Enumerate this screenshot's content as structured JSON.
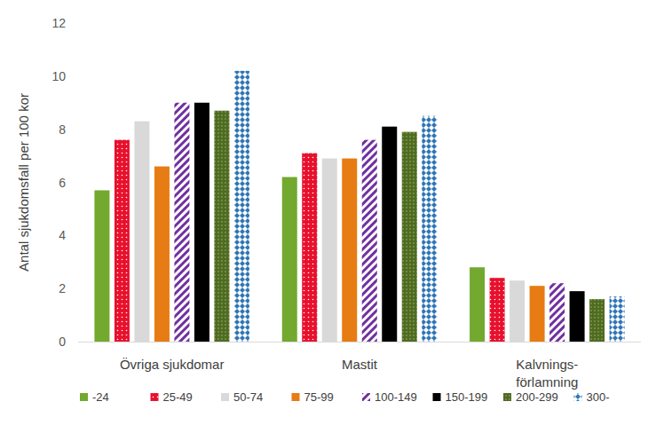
{
  "chart_data": {
    "type": "bar",
    "y_label": "Antal sjukdomsfall per 100 kor",
    "categories": [
      "Övriga sjukdomar",
      "Mastit",
      "Kalvnings-\nförlamning"
    ],
    "series": [
      {
        "name": "-24",
        "color": "#72a92e",
        "values": [
          5.7,
          6.2,
          2.8
        ]
      },
      {
        "name": "25-49",
        "color": "#e8112d",
        "values": [
          7.6,
          7.1,
          2.4
        ]
      },
      {
        "name": "50-74",
        "color": "#d9d9d9",
        "values": [
          8.3,
          6.9,
          2.3
        ]
      },
      {
        "name": "75-99",
        "color": "#e67c13",
        "values": [
          6.6,
          6.9,
          2.1
        ]
      },
      {
        "name": "100-149",
        "color": "#7030a0",
        "values": [
          9.0,
          7.6,
          2.2
        ]
      },
      {
        "name": "150-199",
        "color": "#000000",
        "values": [
          9.0,
          8.1,
          1.9
        ]
      },
      {
        "name": "200-299",
        "color": "#4f6b22",
        "values": [
          8.7,
          7.9,
          1.6
        ]
      },
      {
        "name": "300-",
        "color": "#2e75b6",
        "values": [
          10.2,
          8.5,
          1.7
        ]
      }
    ],
    "ylim": [
      0,
      12
    ],
    "yticks": [
      0,
      2,
      4,
      6,
      8,
      10,
      12
    ],
    "grid": false,
    "legend": "bottom"
  }
}
